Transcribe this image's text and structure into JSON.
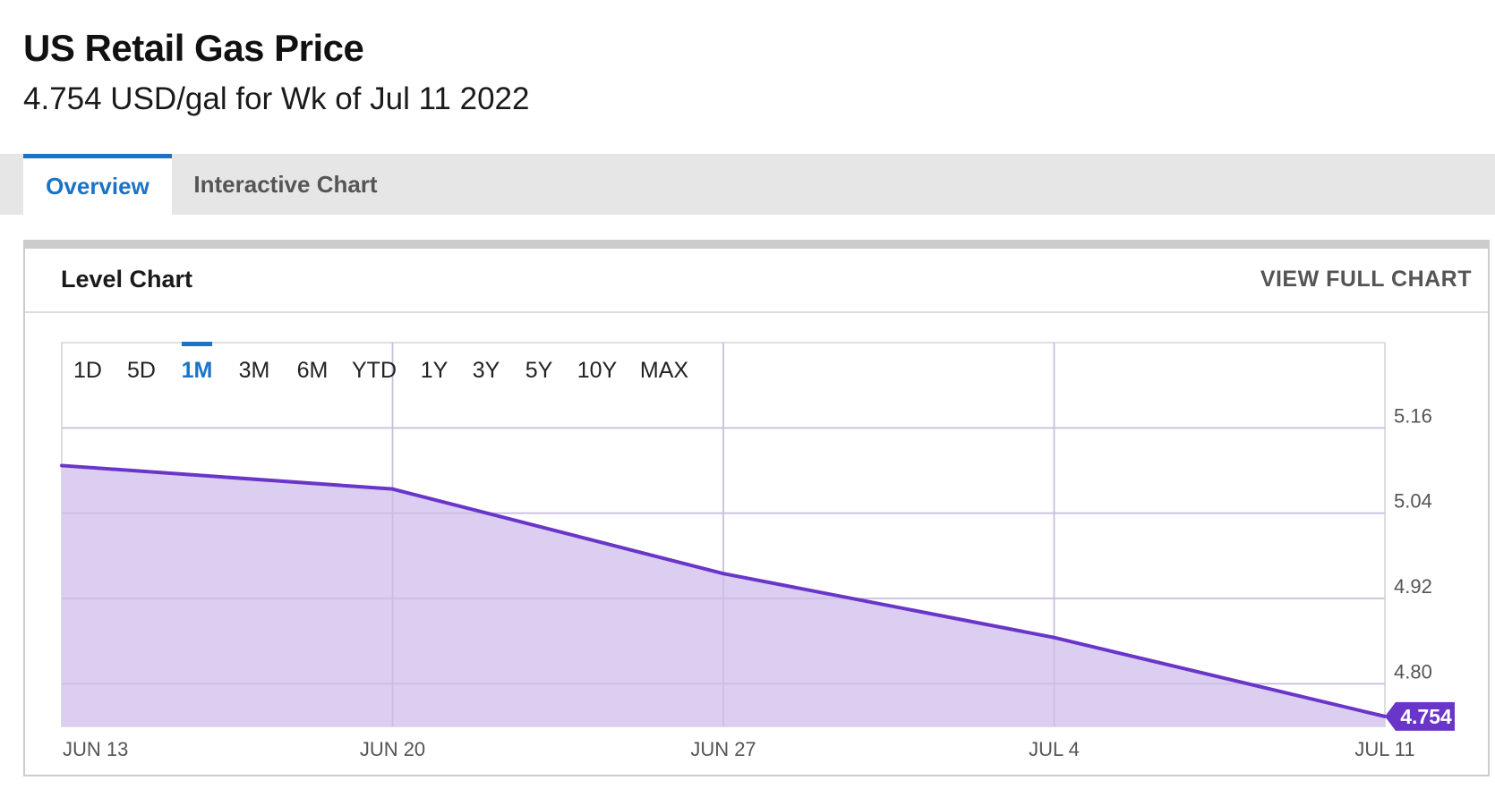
{
  "header": {
    "title": "US Retail Gas Price",
    "subtitle": "4.754 USD/gal for Wk of Jul 11 2022"
  },
  "tabs": [
    {
      "label": "Overview",
      "active": true
    },
    {
      "label": "Interactive Chart",
      "active": false
    }
  ],
  "card": {
    "title": "Level Chart",
    "full_chart_label": "VIEW FULL CHART"
  },
  "range_buttons": [
    {
      "label": "1D",
      "active": false
    },
    {
      "label": "5D",
      "active": false
    },
    {
      "label": "1M",
      "active": true
    },
    {
      "label": "3M",
      "active": false
    },
    {
      "label": "6M",
      "active": false
    },
    {
      "label": "YTD",
      "active": false
    },
    {
      "label": "1Y",
      "active": false
    },
    {
      "label": "3Y",
      "active": false
    },
    {
      "label": "5Y",
      "active": false
    },
    {
      "label": "10Y",
      "active": false
    },
    {
      "label": "MAX",
      "active": false
    }
  ],
  "colors": {
    "line": "#6a35c9",
    "fill": "#d9cbf0",
    "accent": "#1a73c6",
    "badge": "#6a35c9",
    "grid": "#dedede",
    "axis_text": "#555555"
  },
  "chart_data": {
    "type": "area",
    "x": [
      "JUN 13",
      "JUN 20",
      "JUN 27",
      "JUL 4",
      "JUL 11"
    ],
    "series": [
      {
        "values": [
          5.107,
          5.074,
          4.955,
          4.865,
          4.754
        ]
      }
    ],
    "y_ticks": [
      "5.16",
      "5.04",
      "4.92",
      "4.80"
    ],
    "ylim": [
      4.74,
      5.28
    ],
    "last_value_label": "4.754",
    "grid": true,
    "y_axis_position": "right"
  }
}
